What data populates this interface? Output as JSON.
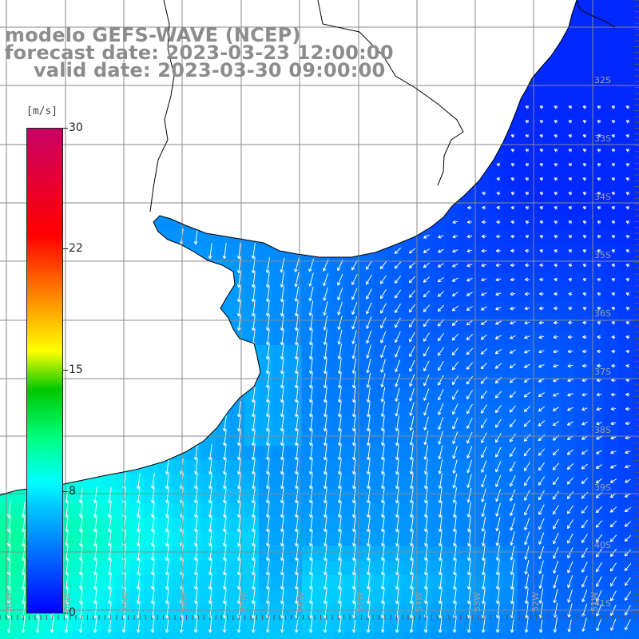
{
  "title": {
    "line1": "modelo GEFS-WAVE (NCEP)",
    "line2": "forecast date: 2023-03-23 12:00:00",
    "line3": "valid date: 2023-03-30 09:00:00"
  },
  "colorbar": {
    "unit": "[m/s]",
    "ticks": [
      "30",
      "22",
      "15",
      "8",
      "0"
    ],
    "tick_values": [
      30,
      22,
      15,
      8,
      0
    ],
    "range": [
      0,
      30
    ],
    "colors": [
      "#0000ff",
      "#00c8ff",
      "#00ffff",
      "#00ff80",
      "#00c800",
      "#ffff00",
      "#ff8000",
      "#ff0000",
      "#c80064"
    ]
  },
  "lat_labels": [
    "32S",
    "33S",
    "34S",
    "35S",
    "36S",
    "37S",
    "38S",
    "39S",
    "40S",
    "41S"
  ],
  "lon_labels": [
    "61W",
    "60W",
    "59W",
    "58W",
    "57W",
    "56W",
    "55W",
    "54W",
    "53W",
    "52W",
    "51W"
  ],
  "map": {
    "colors": {
      "land": "#ffffff",
      "coast": "#000000",
      "grid": "#8a8a8a",
      "arrows": "#ffffff",
      "deep_blue": "#0038ff",
      "mid_blue": "#00a0ff",
      "cyan": "#00ecff",
      "green_cyan": "#00ffb0"
    },
    "grid": true
  }
}
